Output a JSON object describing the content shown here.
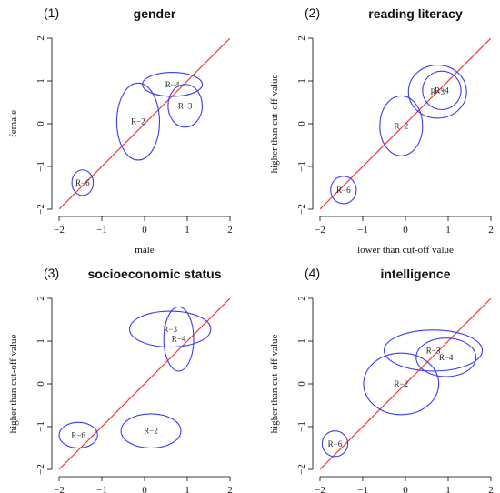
{
  "colors": {
    "ellipse": "#3b3bf0",
    "diagonal": "#f03b3b"
  },
  "chart_data": [
    {
      "type": "scatter",
      "panel_number": "(1)",
      "title": "gender",
      "xlabel": "male",
      "ylabel": "female",
      "xlim": [
        -2,
        2
      ],
      "ylim": [
        -2,
        2
      ],
      "x_ticks": [
        "−2",
        "−1",
        "0",
        "1",
        "2"
      ],
      "y_ticks": [
        "−2",
        "−1",
        "0",
        "1",
        "2"
      ],
      "reference_line": "y = x",
      "ellipses": [
        {
          "label": "R−4",
          "cx": 0.65,
          "cy": 0.92,
          "rx": 0.7,
          "ry": 0.28
        },
        {
          "label": "R−3",
          "cx": 0.95,
          "cy": 0.42,
          "rx": 0.4,
          "ry": 0.5
        },
        {
          "label": "R−2",
          "cx": -0.15,
          "cy": 0.05,
          "rx": 0.5,
          "ry": 0.9
        },
        {
          "label": "R−6",
          "cx": -1.45,
          "cy": -1.38,
          "rx": 0.25,
          "ry": 0.3
        }
      ]
    },
    {
      "type": "scatter",
      "panel_number": "(2)",
      "title": "reading literacy",
      "xlabel": "lower than cut-off value",
      "ylabel": "higher than cut-off value",
      "xlim": [
        -2,
        2
      ],
      "ylim": [
        -2,
        2
      ],
      "x_ticks": [
        "−2",
        "−1",
        "0",
        "1",
        "2"
      ],
      "y_ticks": [
        "−2",
        "−1",
        "0",
        "1",
        "2"
      ],
      "reference_line": "y = x",
      "ellipses": [
        {
          "label": "R−3",
          "cx": 0.75,
          "cy": 0.75,
          "rx": 0.68,
          "ry": 0.62
        },
        {
          "label": "R−4",
          "cx": 0.85,
          "cy": 0.78,
          "rx": 0.45,
          "ry": 0.45
        },
        {
          "label": "R−2",
          "cx": -0.1,
          "cy": -0.05,
          "rx": 0.5,
          "ry": 0.7
        },
        {
          "label": "R−6",
          "cx": -1.45,
          "cy": -1.55,
          "rx": 0.3,
          "ry": 0.32
        }
      ]
    },
    {
      "type": "scatter",
      "panel_number": "(3)",
      "title": "socioeconomic status",
      "xlabel": "lower than cut-off value",
      "ylabel": "higher than cut-off value",
      "xlim": [
        -2,
        2
      ],
      "ylim": [
        -2,
        2
      ],
      "x_ticks": [
        "−2",
        "−1",
        "0",
        "1",
        "2"
      ],
      "y_ticks": [
        "−2",
        "−1",
        "0",
        "1",
        "2"
      ],
      "reference_line": "y = x",
      "ellipses": [
        {
          "label": "R−3",
          "cx": 0.6,
          "cy": 1.28,
          "rx": 0.95,
          "ry": 0.42
        },
        {
          "label": "R−4",
          "cx": 0.8,
          "cy": 1.05,
          "rx": 0.35,
          "ry": 0.75
        },
        {
          "label": "R−2",
          "cx": 0.15,
          "cy": -1.1,
          "rx": 0.7,
          "ry": 0.4
        },
        {
          "label": "R−6",
          "cx": -1.55,
          "cy": -1.2,
          "rx": 0.45,
          "ry": 0.3
        }
      ]
    },
    {
      "type": "scatter",
      "panel_number": "(4)",
      "title": "intelligence",
      "xlabel": "lower than cut-off value",
      "ylabel": "higher than cut-off value",
      "xlim": [
        -2,
        2
      ],
      "ylim": [
        -2,
        2
      ],
      "x_ticks": [
        "−2",
        "−1",
        "0",
        "1",
        "2"
      ],
      "y_ticks": [
        "−2",
        "−1",
        "0",
        "1",
        "2"
      ],
      "reference_line": "y = x",
      "ellipses": [
        {
          "label": "R−3",
          "cx": 0.65,
          "cy": 0.78,
          "rx": 1.15,
          "ry": 0.48
        },
        {
          "label": "R−4",
          "cx": 0.95,
          "cy": 0.62,
          "rx": 0.7,
          "ry": 0.45
        },
        {
          "label": "R−2",
          "cx": -0.1,
          "cy": 0.0,
          "rx": 0.88,
          "ry": 0.72
        },
        {
          "label": "R−6",
          "cx": -1.65,
          "cy": -1.4,
          "rx": 0.3,
          "ry": 0.3
        }
      ]
    }
  ]
}
